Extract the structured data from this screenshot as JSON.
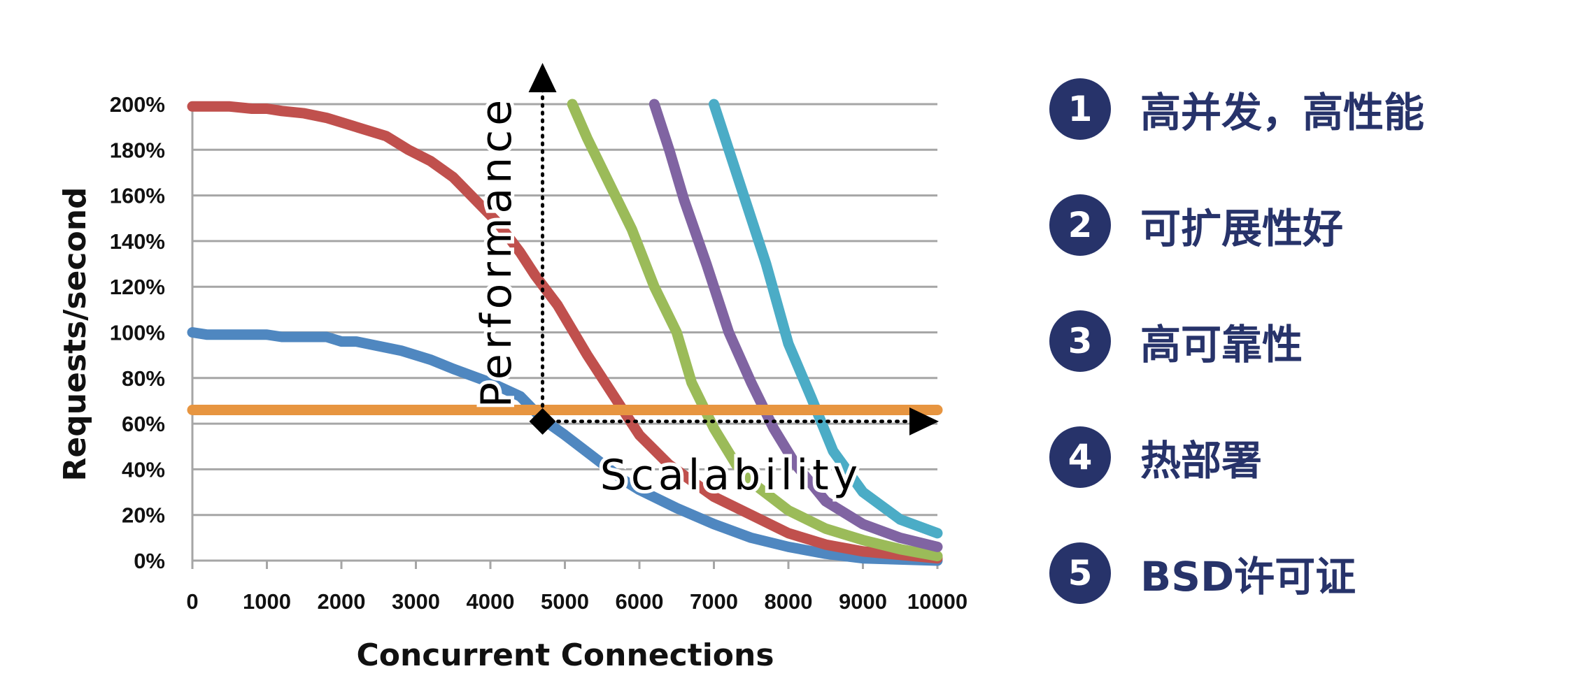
{
  "chart_data": {
    "type": "line",
    "title": "",
    "xlabel": "Concurrent Connections",
    "ylabel": "Requests/second",
    "xlim": [
      0,
      10000
    ],
    "ylim": [
      0,
      200
    ],
    "x_ticks": [
      "0",
      "1000",
      "2000",
      "3000",
      "4000",
      "5000",
      "6000",
      "7000",
      "8000",
      "9000",
      "10000"
    ],
    "y_ticks": [
      "0%",
      "20%",
      "40%",
      "60%",
      "80%",
      "100%",
      "120%",
      "140%",
      "160%",
      "180%",
      "200%"
    ],
    "grid": true,
    "legend": "none",
    "series": [
      {
        "color": "#4f87c0",
        "points": [
          [
            0,
            100
          ],
          [
            200,
            99
          ],
          [
            500,
            99
          ],
          [
            1000,
            99
          ],
          [
            1200,
            98
          ],
          [
            1500,
            98
          ],
          [
            1800,
            98
          ],
          [
            2000,
            96
          ],
          [
            2200,
            96
          ],
          [
            2500,
            94
          ],
          [
            2800,
            92
          ],
          [
            3200,
            88
          ],
          [
            3500,
            84
          ],
          [
            4000,
            78
          ],
          [
            4400,
            72
          ],
          [
            4700,
            62
          ],
          [
            5000,
            55
          ],
          [
            5400,
            45
          ],
          [
            5800,
            35
          ],
          [
            6000,
            31
          ],
          [
            6500,
            23
          ],
          [
            7000,
            16
          ],
          [
            7500,
            10
          ],
          [
            8000,
            6
          ],
          [
            8500,
            3
          ],
          [
            9000,
            1
          ],
          [
            10000,
            0
          ]
        ]
      },
      {
        "color": "#c0504d",
        "points": [
          [
            0,
            199
          ],
          [
            500,
            199
          ],
          [
            800,
            198
          ],
          [
            1000,
            198
          ],
          [
            1200,
            197
          ],
          [
            1500,
            196
          ],
          [
            1800,
            194
          ],
          [
            2000,
            192
          ],
          [
            2300,
            189
          ],
          [
            2600,
            186
          ],
          [
            2900,
            180
          ],
          [
            3200,
            175
          ],
          [
            3500,
            168
          ],
          [
            3800,
            158
          ],
          [
            4100,
            148
          ],
          [
            4400,
            135
          ],
          [
            4600,
            125
          ],
          [
            4900,
            112
          ],
          [
            5300,
            90
          ],
          [
            5700,
            70
          ],
          [
            6000,
            55
          ],
          [
            6400,
            42
          ],
          [
            7000,
            28
          ],
          [
            7500,
            20
          ],
          [
            8000,
            12
          ],
          [
            8500,
            7
          ],
          [
            9000,
            4
          ],
          [
            10000,
            1
          ]
        ]
      },
      {
        "color": "#9bbb59",
        "points": [
          [
            5100,
            200
          ],
          [
            5300,
            185
          ],
          [
            5600,
            165
          ],
          [
            5900,
            145
          ],
          [
            6200,
            120
          ],
          [
            6500,
            100
          ],
          [
            6700,
            78
          ],
          [
            7000,
            58
          ],
          [
            7300,
            42
          ],
          [
            7600,
            32
          ],
          [
            8000,
            22
          ],
          [
            8500,
            14
          ],
          [
            9000,
            9
          ],
          [
            9500,
            5
          ],
          [
            10000,
            2
          ]
        ]
      },
      {
        "color": "#8064a2",
        "points": [
          [
            6200,
            200
          ],
          [
            6400,
            180
          ],
          [
            6600,
            158
          ],
          [
            6900,
            130
          ],
          [
            7200,
            100
          ],
          [
            7500,
            78
          ],
          [
            7800,
            58
          ],
          [
            8100,
            42
          ],
          [
            8500,
            26
          ],
          [
            9000,
            16
          ],
          [
            9500,
            10
          ],
          [
            10000,
            6
          ]
        ]
      },
      {
        "color": "#4bacc6",
        "points": [
          [
            7000,
            200
          ],
          [
            7200,
            180
          ],
          [
            7400,
            160
          ],
          [
            7700,
            130
          ],
          [
            8000,
            95
          ],
          [
            8300,
            72
          ],
          [
            8600,
            48
          ],
          [
            9000,
            30
          ],
          [
            9500,
            18
          ],
          [
            10000,
            12
          ]
        ]
      },
      {
        "color": "#e79540",
        "points": [
          [
            0,
            66
          ],
          [
            10000,
            66
          ]
        ]
      }
    ],
    "annotations": {
      "vertical_label": "Performance",
      "horizontal_label": "Scalability",
      "origin": {
        "x": 4700,
        "y": 61
      }
    }
  },
  "features": [
    {
      "num": "1",
      "text": "高并发，高性能"
    },
    {
      "num": "2",
      "text": "可扩展性好"
    },
    {
      "num": "3",
      "text": "高可靠性"
    },
    {
      "num": "4",
      "text": "热部署"
    },
    {
      "num": "5",
      "text": "BSD许可证"
    }
  ]
}
